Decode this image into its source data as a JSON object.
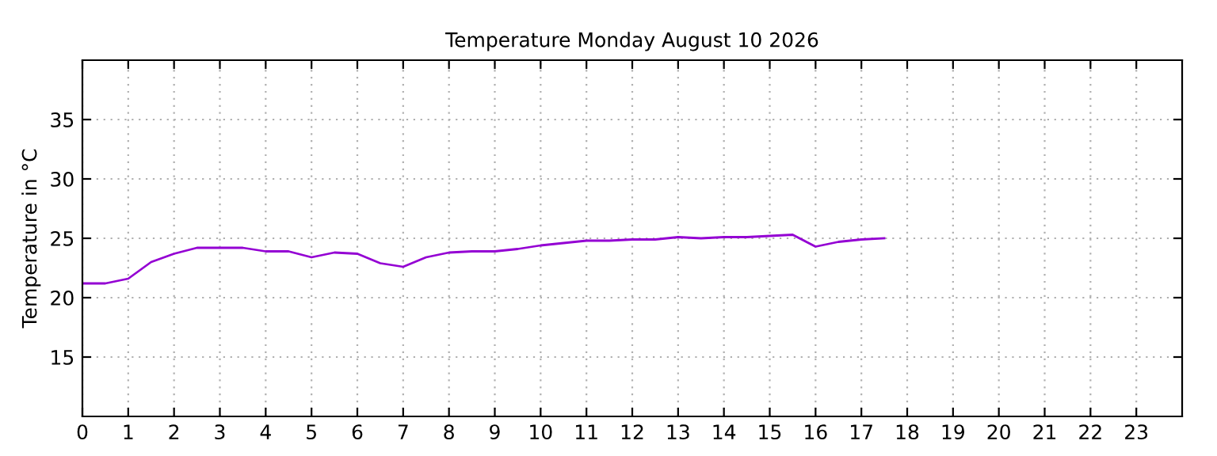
{
  "chart_data": {
    "type": "line",
    "title": "Temperature Monday August 10 2026",
    "ylabel": "Temperature in °C",
    "x": [
      0,
      0.5,
      1,
      1.5,
      2,
      2.5,
      3,
      3.5,
      4,
      4.5,
      5,
      5.5,
      6,
      6.5,
      7,
      7.5,
      8,
      8.5,
      9,
      9.5,
      10,
      10.5,
      11,
      11.5,
      12,
      12.5,
      13,
      13.5,
      14,
      14.5,
      15,
      15.5,
      16,
      16.5,
      17,
      17.5
    ],
    "series": [
      {
        "color": "#9400d3",
        "values": [
          21.2,
          21.2,
          21.6,
          23.0,
          23.7,
          24.2,
          24.2,
          24.2,
          23.9,
          23.9,
          23.4,
          23.8,
          23.7,
          22.9,
          22.6,
          23.4,
          23.8,
          23.9,
          23.9,
          24.1,
          24.4,
          24.6,
          24.8,
          24.8,
          24.9,
          24.9,
          25.1,
          25.0,
          25.1,
          25.1,
          25.2,
          25.3,
          24.3,
          24.7,
          24.9,
          25.0
        ]
      }
    ],
    "xlim": [
      0,
      24
    ],
    "xticks": [
      0,
      1,
      2,
      3,
      4,
      5,
      6,
      7,
      8,
      9,
      10,
      11,
      12,
      13,
      14,
      15,
      16,
      17,
      18,
      19,
      20,
      21,
      22,
      23
    ],
    "ylim": [
      10,
      40
    ],
    "yticks": [
      15,
      20,
      25,
      30,
      35
    ],
    "grid": true,
    "marker": "none",
    "line_style": "solid"
  }
}
